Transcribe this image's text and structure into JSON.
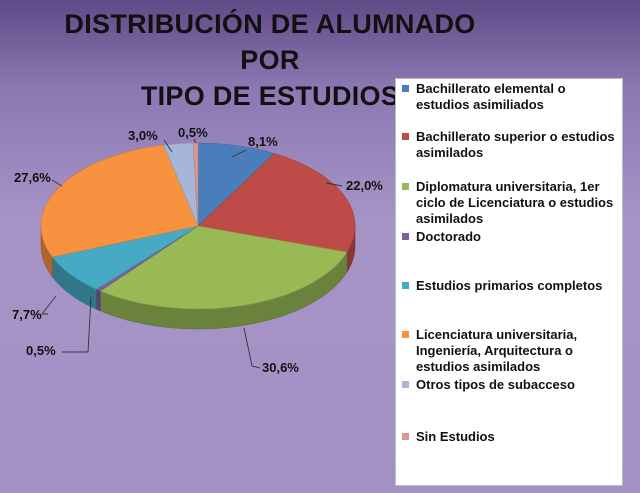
{
  "chart_data": {
    "type": "pie",
    "title": "DISTRIBUCIÓN DE ALUMNADO POR\nTIPO DE ESTUDIOS",
    "three_d": true,
    "legend_position": "right",
    "slices": [
      {
        "label": "Bachillerato elemental o estudios asimiliados",
        "value": 8.1,
        "display": "8,1%",
        "color": "#4a7ebb"
      },
      {
        "label": "Bachillerato superior o estudios asimilados",
        "value": 22.0,
        "display": "22,0%",
        "color": "#be4b48"
      },
      {
        "label": "Diplomatura universitaria, 1er ciclo de Licenciatura o estudios asimilados",
        "value": 30.6,
        "display": "30,6%",
        "color": "#98b954"
      },
      {
        "label": "Doctorado",
        "value": 0.5,
        "display": "0,5%",
        "color": "#7d60a0"
      },
      {
        "label": "Estudios primarios completos",
        "value": 7.7,
        "display": "7,7%",
        "color": "#46aac4"
      },
      {
        "label": "Licenciatura universitaria, Ingeniería, Arquitectura o estudios asimilados",
        "value": 27.6,
        "display": "27,6%",
        "color": "#f69240"
      },
      {
        "label": "Otros tipos de subacceso",
        "value": 3.0,
        "display": "3,0%",
        "color": "#a5b6d8"
      },
      {
        "label": "Sin Estudios",
        "value": 0.5,
        "display": "0,5%",
        "color": "#d99694"
      }
    ]
  }
}
